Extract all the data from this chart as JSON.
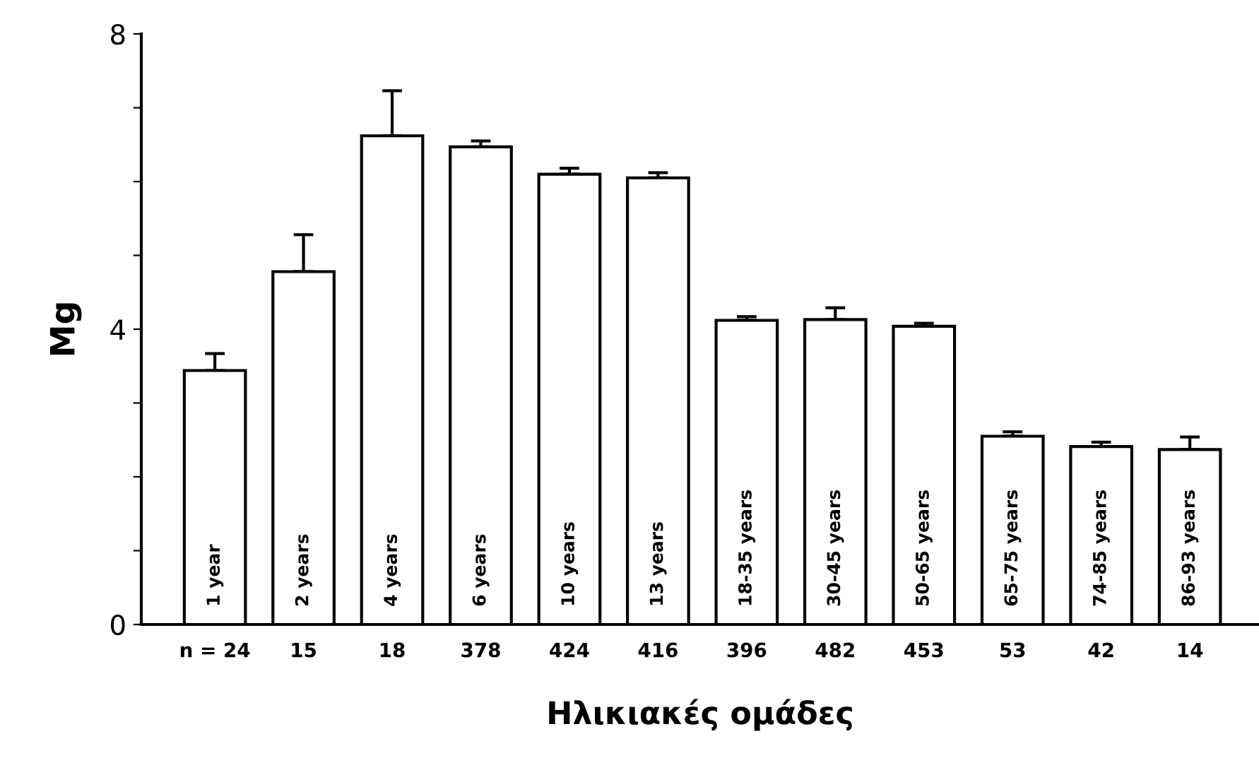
{
  "chart_data": {
    "type": "bar",
    "categories": [
      "1 year",
      "2 years",
      "4 years",
      "6 years",
      "10 years",
      "13 years",
      "18-35 years",
      "30-45 years",
      "50-65 years",
      "65-75 years",
      "74-85 years",
      "86-93 years"
    ],
    "values": [
      3.44,
      4.78,
      6.62,
      6.47,
      6.1,
      6.05,
      4.12,
      4.13,
      4.04,
      2.55,
      2.41,
      2.37
    ],
    "errors": [
      [
        3.44,
        3.67
      ],
      [
        4.78,
        5.28
      ],
      [
        6.62,
        7.23
      ],
      [
        6.47,
        6.55
      ],
      [
        6.1,
        6.18
      ],
      [
        6.05,
        6.12
      ],
      [
        4.12,
        4.17
      ],
      [
        4.13,
        4.29
      ],
      [
        4.04,
        4.08
      ],
      [
        2.55,
        2.61
      ],
      [
        2.41,
        2.47
      ],
      [
        2.37,
        2.54
      ]
    ],
    "color": "#ffffff",
    "ylabel": "Mg",
    "xlabel": "Ηλικιακές ομάδες",
    "ylim": [
      0,
      8
    ],
    "yticks": [
      0,
      {
        "value": 1,
        "label": null
      },
      {
        "value": 2,
        "label": null
      },
      {
        "value": 3,
        "label": null
      },
      4,
      {
        "value": 5,
        "label": null
      },
      {
        "value": 6,
        "label": null
      },
      {
        "value": 7,
        "label": null
      },
      8
    ],
    "annotations": [
      "n = 24",
      "15",
      "18",
      "378",
      "424",
      "416",
      "396",
      "482",
      "453",
      "53",
      "42",
      "14"
    ],
    "grid": false,
    "legend": false
  }
}
